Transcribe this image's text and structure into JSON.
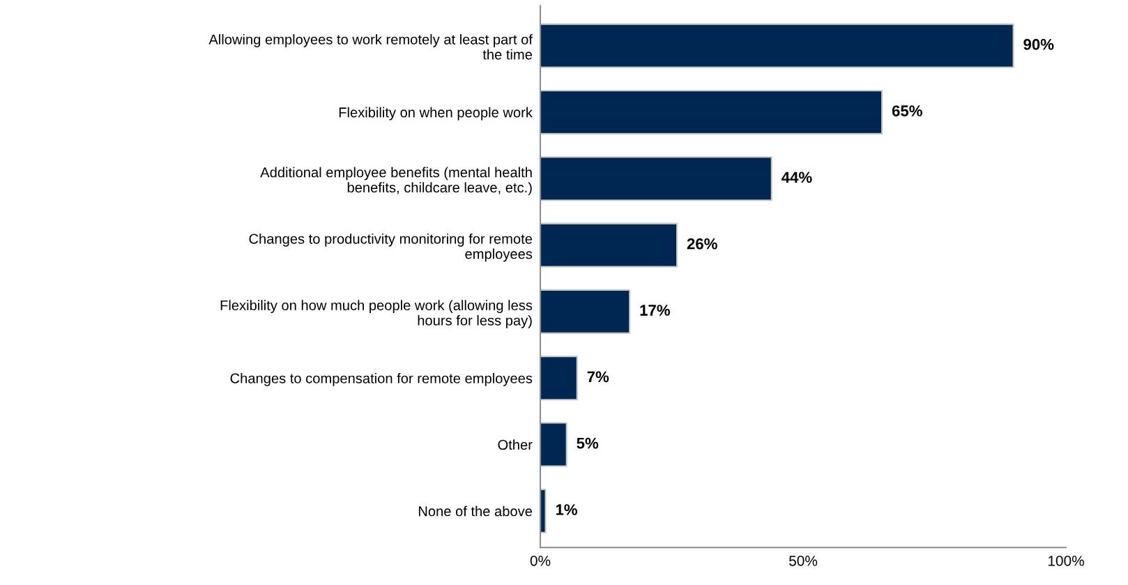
{
  "chart_data": {
    "type": "bar",
    "orientation": "horizontal",
    "categories": [
      "Allowing employees to work remotely at least part of\nthe time",
      "Flexibility on when people work",
      "Additional employee benefits (mental health\nbenefits, childcare leave, etc.)",
      "Changes to productivity monitoring for remote\nemployees",
      "Flexibility on how much people work (allowing less\nhours for less pay)",
      "Changes to compensation for remote employees",
      "Other",
      "None of the above"
    ],
    "values": [
      90,
      65,
      44,
      26,
      17,
      7,
      5,
      1
    ],
    "value_labels": [
      "90%",
      "65%",
      "44%",
      "26%",
      "17%",
      "7%",
      "5%",
      "1%"
    ],
    "color": "#002652",
    "xlim": [
      0,
      100
    ],
    "xticks": [
      {
        "value": 0,
        "label": "0%"
      },
      {
        "value": 50,
        "label": "50%"
      },
      {
        "value": 100,
        "label": "100%"
      }
    ],
    "grid": false,
    "legend": false
  }
}
